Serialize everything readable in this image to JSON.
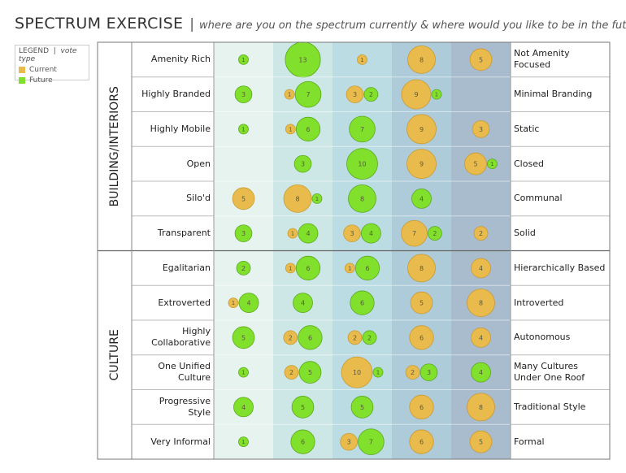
{
  "title": "SPECTRUM EXERCISE",
  "subtitle": "where are you on the spectrum currently & where would you like to be in the future?",
  "legend": {
    "title": "LEGEND",
    "subtitle": "vote type",
    "items": [
      {
        "label": "Current",
        "color": "#e9bb4c"
      },
      {
        "label": "Future",
        "color": "#80e02c"
      }
    ]
  },
  "groups": [
    {
      "label": "BUILDING/INTERIORS",
      "rows": [
        {
          "left": "Amenity Rich",
          "right": "Not Amenity Focused",
          "current": [
            null,
            null,
            1,
            8,
            5
          ],
          "future": [
            1,
            13,
            null,
            null,
            null
          ]
        },
        {
          "left": "Highly Branded",
          "right": "Minimal Branding",
          "current": [
            null,
            1,
            3,
            9,
            null
          ],
          "future": [
            3,
            7,
            2,
            1,
            null
          ]
        },
        {
          "left": "Highly Mobile",
          "right": "Static",
          "current": [
            null,
            1,
            null,
            9,
            3
          ],
          "future": [
            1,
            6,
            7,
            null,
            null
          ]
        },
        {
          "left": "Open",
          "right": "Closed",
          "current": [
            null,
            null,
            null,
            9,
            5
          ],
          "future": [
            null,
            3,
            10,
            null,
            1
          ]
        },
        {
          "left": "Silo'd",
          "right": "Communal",
          "current": [
            5,
            8,
            null,
            null,
            null
          ],
          "future": [
            null,
            1,
            8,
            4,
            null
          ]
        },
        {
          "left": "Transparent",
          "right": "Solid",
          "current": [
            null,
            1,
            3,
            7,
            2
          ],
          "future": [
            3,
            4,
            4,
            2,
            null
          ]
        }
      ]
    },
    {
      "label": "CULTURE",
      "rows": [
        {
          "left": "Egalitarian",
          "right": "Hierarchically Based",
          "current": [
            null,
            1,
            1,
            8,
            4
          ],
          "future": [
            2,
            6,
            6,
            null,
            null
          ]
        },
        {
          "left": "Extroverted",
          "right": "Introverted",
          "current": [
            1,
            null,
            null,
            5,
            8
          ],
          "future": [
            4,
            4,
            6,
            null,
            null
          ]
        },
        {
          "left": "Highly Collaborative",
          "right": "Autonomous",
          "current": [
            null,
            2,
            2,
            6,
            4
          ],
          "future": [
            5,
            6,
            2,
            null,
            null
          ]
        },
        {
          "left": "One Unified Culture",
          "right": "Many Cultures Under One Roof",
          "current": [
            null,
            2,
            10,
            2,
            null
          ],
          "future": [
            1,
            5,
            1,
            3,
            4
          ]
        },
        {
          "left": "Progressive Style",
          "right": "Traditional Style",
          "current": [
            null,
            null,
            null,
            6,
            8
          ],
          "future": [
            4,
            5,
            5,
            null,
            null
          ]
        },
        {
          "left": "Very Informal",
          "right": "Formal",
          "current": [
            null,
            null,
            3,
            6,
            5
          ],
          "future": [
            1,
            6,
            7,
            null,
            null
          ]
        }
      ]
    }
  ]
}
